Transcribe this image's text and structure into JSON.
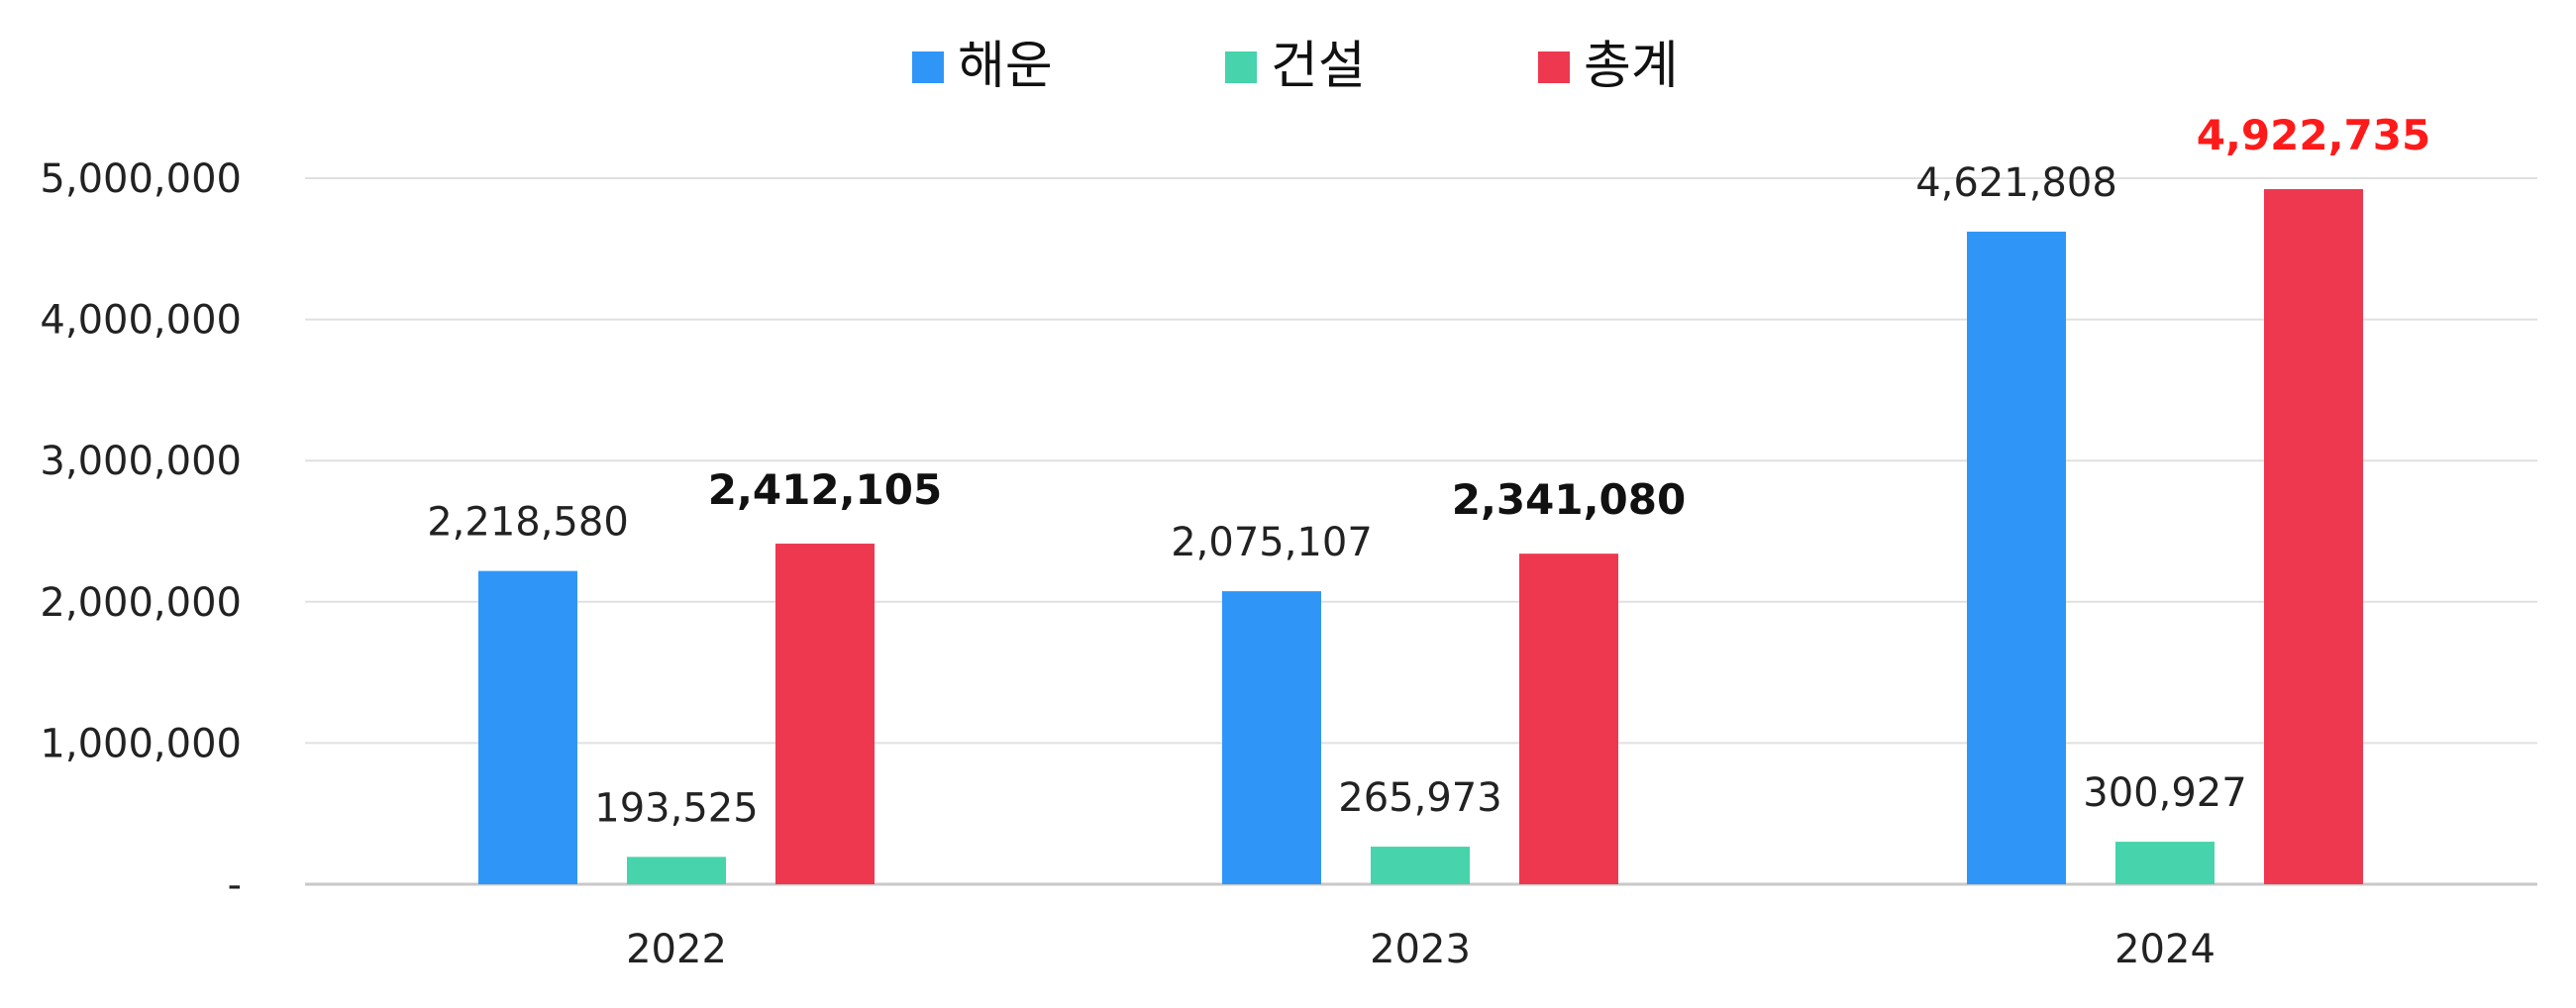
{
  "chart_data": {
    "type": "bar",
    "categories": [
      "2022",
      "2023",
      "2024"
    ],
    "series": [
      {
        "name": "해운",
        "values": [
          2218580,
          2075107,
          4621808
        ],
        "color": "#2F96F8",
        "value_labels": [
          "2,218,580",
          "2,075,107",
          "4,621,808"
        ]
      },
      {
        "name": "건설",
        "values": [
          193525,
          265973,
          300927
        ],
        "color": "#47D3AB",
        "value_labels": [
          "193,525",
          "265,973",
          "300,927"
        ]
      },
      {
        "name": "총계",
        "values": [
          2412105,
          2341080,
          4922735
        ],
        "color": "#EE3850",
        "value_labels": [
          "2,412,105",
          "2,341,080",
          "4,922,735"
        ]
      }
    ],
    "ylim": [
      0,
      5000000
    ],
    "yticks": [
      {
        "value": 0,
        "label": "-"
      },
      {
        "value": 1000000,
        "label": "1,000,000"
      },
      {
        "value": 2000000,
        "label": "2,000,000"
      },
      {
        "value": 3000000,
        "label": "3,000,000"
      },
      {
        "value": 4000000,
        "label": "4,000,000"
      },
      {
        "value": 5000000,
        "label": "5,000,000"
      }
    ],
    "grid": true,
    "legend_position": "top-center",
    "title": "",
    "xlabel": "",
    "ylabel": "",
    "label_colors": {
      "normal": "#222222",
      "total": "#111111",
      "highlight": "#FF1A1A"
    }
  }
}
